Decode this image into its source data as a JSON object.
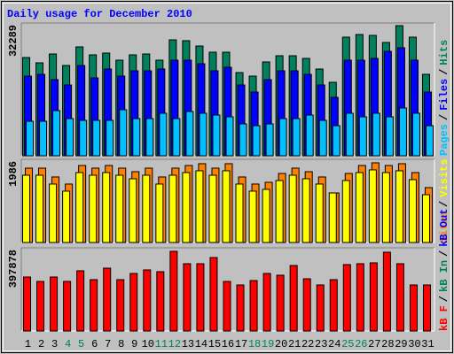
{
  "chart_data": [
    {
      "type": "bar",
      "title": "Daily usage for December 2010",
      "title_color": "#0000ff",
      "ylim": [
        0,
        32289
      ],
      "yticks": [
        32289
      ],
      "legend_separator": "/",
      "legend": [
        {
          "name": "Pages",
          "color": "#00c0ff"
        },
        {
          "name": "Files",
          "color": "#0000ff"
        },
        {
          "name": "Hits",
          "color": "#00805c"
        }
      ],
      "series": [
        {
          "color": "#00805c",
          "values": [
            23894,
            22602,
            24755,
            21956,
            26477,
            24540,
            24970,
            23248,
            24540,
            24755,
            23248,
            28199,
            27984,
            26692,
            25186,
            25186,
            20234,
            19373,
            22818,
            24324,
            24324,
            23679,
            21095,
            17867,
            28845,
            29491,
            29275,
            27553,
            31643,
            28845,
            19804
          ]
        },
        {
          "color": "#0000ff",
          "values": [
            19373,
            19804,
            18512,
            17221,
            21956,
            18943,
            21095,
            19373,
            20665,
            20665,
            21095,
            23248,
            23248,
            22387,
            20665,
            21526,
            17221,
            15499,
            18512,
            20665,
            20665,
            19804,
            17221,
            14207,
            23248,
            23248,
            23679,
            25401,
            26262,
            23248,
            15499
          ]
        },
        {
          "color": "#00c0ff",
          "values": [
            8395,
            8395,
            10978,
            9041,
            8610,
            8610,
            8610,
            11194,
            9041,
            9041,
            10332,
            9041,
            10763,
            10332,
            9902,
            9471,
            7749,
            7319,
            7749,
            9041,
            9041,
            9902,
            8610,
            7319,
            10332,
            9471,
            10332,
            9471,
            11624,
            10332,
            7319
          ]
        }
      ]
    },
    {
      "type": "bar",
      "ylim": [
        0,
        1986
      ],
      "yticks": [
        1986
      ],
      "legend_separator": "/",
      "legend": [
        {
          "name": "Sites",
          "color": "#ff8000"
        },
        {
          "name": "Visits",
          "color": "#ffff00"
        }
      ],
      "series": [
        {
          "color": "#ff8000",
          "values": [
            1775,
            1775,
            1564,
            1395,
            1838,
            1775,
            1838,
            1775,
            1690,
            1775,
            1564,
            1775,
            1838,
            1881,
            1775,
            1881,
            1564,
            1395,
            1437,
            1648,
            1775,
            1690,
            1564,
            1183,
            1648,
            1838,
            1902,
            1838,
            1881,
            1669,
            1310
          ]
        },
        {
          "color": "#ffff00",
          "values": [
            1606,
            1606,
            1395,
            1226,
            1669,
            1606,
            1669,
            1606,
            1521,
            1606,
            1395,
            1606,
            1669,
            1712,
            1606,
            1712,
            1395,
            1226,
            1268,
            1479,
            1606,
            1521,
            1395,
            1183,
            1479,
            1669,
            1733,
            1669,
            1712,
            1500,
            1141
          ]
        }
      ]
    },
    {
      "type": "bar",
      "ylim": [
        0,
        397878
      ],
      "yticks": [
        397878
      ],
      "legend_separator": "/",
      "legend": [
        {
          "name": "kB F",
          "color": "#ff0000"
        },
        {
          "name": "kB In",
          "color": "#00805c"
        },
        {
          "name": "kB Out",
          "color": "#0000ff"
        }
      ],
      "categories": [
        "1",
        "2",
        "3",
        "4",
        "5",
        "6",
        "7",
        "8",
        "9",
        "10",
        "11",
        "12",
        "13",
        "14",
        "15",
        "16",
        "17",
        "18",
        "19",
        "20",
        "21",
        "22",
        "23",
        "24",
        "25",
        "26",
        "27",
        "28",
        "29",
        "30",
        "31"
      ],
      "category_colors": [
        "#000000",
        "#000000",
        "#000000",
        "#00805c",
        "#00805c",
        "#000000",
        "#000000",
        "#000000",
        "#000000",
        "#000000",
        "#00805c",
        "#00805c",
        "#000000",
        "#000000",
        "#000000",
        "#000000",
        "#000000",
        "#00805c",
        "#00805c",
        "#000000",
        "#000000",
        "#000000",
        "#000000",
        "#000000",
        "#00805c",
        "#00805c",
        "#000000",
        "#000000",
        "#000000",
        "#000000",
        "#000000"
      ],
      "series": [
        {
          "color": "#ff0000",
          "values": [
            258213,
            237048,
            258213,
            237048,
            287844,
            245514,
            300543,
            245514,
            275145,
            292077,
            283611,
            380970,
            321708,
            321708,
            351339,
            237048,
            220116,
            241281,
            275145,
            266679,
            313242,
            249747,
            220116,
            245514,
            317475,
            321708,
            325941,
            376737,
            321708,
            220116,
            220116
          ]
        }
      ]
    }
  ]
}
